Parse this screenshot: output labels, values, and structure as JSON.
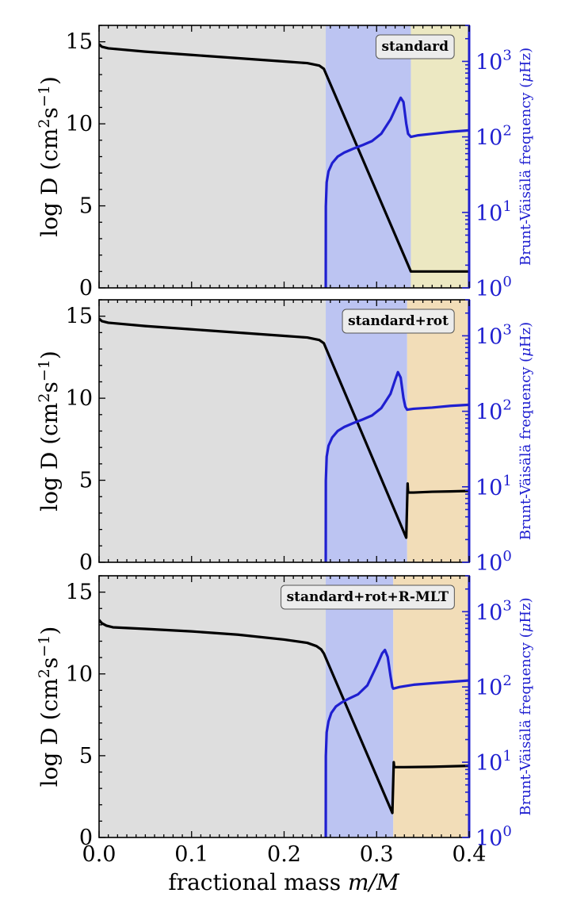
{
  "chart_data": [
    {
      "type": "line",
      "panel_label": "standard",
      "xlim": [
        0.0,
        0.4
      ],
      "ylim_left": [
        0,
        16
      ],
      "ylim_right": [
        1,
        3000
      ],
      "right_scale": "log",
      "ylabel_left": "log D (cm²s⁻¹)",
      "ylabel_right": "Brunt-Väisälä frequency (μHz)",
      "regions": [
        {
          "x0": 0.0,
          "x1": 0.245,
          "color": "#dedede"
        },
        {
          "x0": 0.245,
          "x1": 0.337,
          "color": "#bcc4f2"
        },
        {
          "x0": 0.337,
          "x1": 0.4,
          "color": "#ece8c2"
        }
      ],
      "series": [
        {
          "axis": "left",
          "color": "#000000",
          "x": [
            0.0,
            0.003,
            0.01,
            0.05,
            0.1,
            0.15,
            0.2,
            0.225,
            0.238,
            0.243,
            0.337,
            0.4
          ],
          "y": [
            14.85,
            14.7,
            14.6,
            14.4,
            14.2,
            14.0,
            13.8,
            13.7,
            13.55,
            13.35,
            1.0,
            1.0
          ]
        },
        {
          "axis": "right",
          "color": "#1f1fd0",
          "x": [
            0.245,
            0.2451,
            0.246,
            0.248,
            0.252,
            0.258,
            0.265,
            0.275,
            0.285,
            0.295,
            0.305,
            0.315,
            0.322,
            0.326,
            0.329,
            0.332,
            0.334,
            0.337,
            0.345,
            0.36,
            0.38,
            0.4
          ],
          "y": [
            1.0,
            12,
            25,
            35,
            45,
            55,
            62,
            70,
            78,
            88,
            110,
            170,
            260,
            330,
            290,
            150,
            110,
            100,
            105,
            110,
            117,
            122
          ]
        }
      ]
    },
    {
      "type": "line",
      "panel_label": "standard+rot",
      "xlim": [
        0.0,
        0.4
      ],
      "ylim_left": [
        0,
        16
      ],
      "ylim_right": [
        1,
        3000
      ],
      "right_scale": "log",
      "ylabel_left": "log D (cm²s⁻¹)",
      "ylabel_right": "Brunt-Väisälä frequency (μHz)",
      "regions": [
        {
          "x0": 0.0,
          "x1": 0.245,
          "color": "#dedede"
        },
        {
          "x0": 0.245,
          "x1": 0.333,
          "color": "#bcc4f2"
        },
        {
          "x0": 0.333,
          "x1": 0.4,
          "color": "#f2ddb8"
        }
      ],
      "series": [
        {
          "axis": "left",
          "color": "#000000",
          "x": [
            0.0,
            0.003,
            0.01,
            0.05,
            0.1,
            0.15,
            0.2,
            0.225,
            0.238,
            0.243,
            0.332,
            0.3335,
            0.334,
            0.335,
            0.34,
            0.36,
            0.38,
            0.4
          ],
          "y": [
            14.85,
            14.7,
            14.6,
            14.4,
            14.2,
            14.0,
            13.8,
            13.7,
            13.55,
            13.35,
            1.5,
            4.8,
            4.3,
            4.25,
            4.25,
            4.3,
            4.32,
            4.35
          ]
        },
        {
          "axis": "right",
          "color": "#1f1fd0",
          "x": [
            0.245,
            0.2451,
            0.246,
            0.248,
            0.252,
            0.258,
            0.265,
            0.275,
            0.285,
            0.295,
            0.305,
            0.315,
            0.32,
            0.323,
            0.326,
            0.329,
            0.331,
            0.333,
            0.34,
            0.36,
            0.38,
            0.4
          ],
          "y": [
            1.0,
            12,
            25,
            35,
            45,
            55,
            62,
            70,
            78,
            88,
            110,
            170,
            260,
            330,
            280,
            150,
            115,
            105,
            108,
            112,
            118,
            122
          ]
        }
      ]
    },
    {
      "type": "line",
      "panel_label": "standard+rot+R-MLT",
      "xlim": [
        0.0,
        0.4
      ],
      "ylim_left": [
        0,
        16
      ],
      "ylim_right": [
        1,
        3000
      ],
      "right_scale": "log",
      "ylabel_left": "log D (cm²s⁻¹)",
      "ylabel_right": "Brunt-Väisälä frequency (μHz)",
      "xlabel": "fractional mass m/M",
      "regions": [
        {
          "x0": 0.0,
          "x1": 0.245,
          "color": "#dedede"
        },
        {
          "x0": 0.245,
          "x1": 0.318,
          "color": "#bcc4f2"
        },
        {
          "x0": 0.318,
          "x1": 0.4,
          "color": "#f2ddb8"
        }
      ],
      "series": [
        {
          "axis": "left",
          "color": "#000000",
          "x": [
            0.0,
            0.003,
            0.008,
            0.015,
            0.05,
            0.1,
            0.15,
            0.2,
            0.225,
            0.235,
            0.24,
            0.243,
            0.317,
            0.3185,
            0.319,
            0.32,
            0.33,
            0.36,
            0.38,
            0.4
          ],
          "y": [
            13.3,
            13.1,
            12.95,
            12.85,
            12.75,
            12.6,
            12.4,
            12.1,
            11.9,
            11.7,
            11.5,
            11.25,
            1.5,
            4.6,
            4.3,
            4.3,
            4.3,
            4.32,
            4.35,
            4.38
          ]
        },
        {
          "axis": "right",
          "color": "#1f1fd0",
          "x": [
            0.245,
            0.2451,
            0.246,
            0.248,
            0.251,
            0.256,
            0.262,
            0.27,
            0.28,
            0.29,
            0.3,
            0.306,
            0.309,
            0.312,
            0.315,
            0.317,
            0.318,
            0.325,
            0.34,
            0.36,
            0.38,
            0.4
          ],
          "y": [
            1.0,
            12,
            25,
            35,
            45,
            55,
            62,
            70,
            80,
            105,
            190,
            280,
            310,
            250,
            140,
            100,
            95,
            100,
            107,
            112,
            117,
            122
          ]
        }
      ]
    }
  ],
  "axis_text": {
    "x_ticks": [
      "0.0",
      "0.1",
      "0.2",
      "0.3",
      "0.4"
    ],
    "y_ticks_left": [
      "0",
      "5",
      "10",
      "15"
    ],
    "y_ticks_right": [
      "10",
      "10",
      "10",
      "10"
    ],
    "y_ticks_right_exp": [
      "0",
      "1",
      "2",
      "3"
    ],
    "ylabel_left_main": "log D (cm",
    "ylabel_left_sup1": "2",
    "ylabel_left_mid": "s",
    "ylabel_left_sup2": "−1",
    "ylabel_left_end": ")",
    "ylabel_right_main": "Brunt-Väisälä frequency (",
    "ylabel_right_mu": "μ",
    "ylabel_right_end": "Hz)",
    "xlabel_main": "fractional mass ",
    "xlabel_math": "m/M"
  }
}
